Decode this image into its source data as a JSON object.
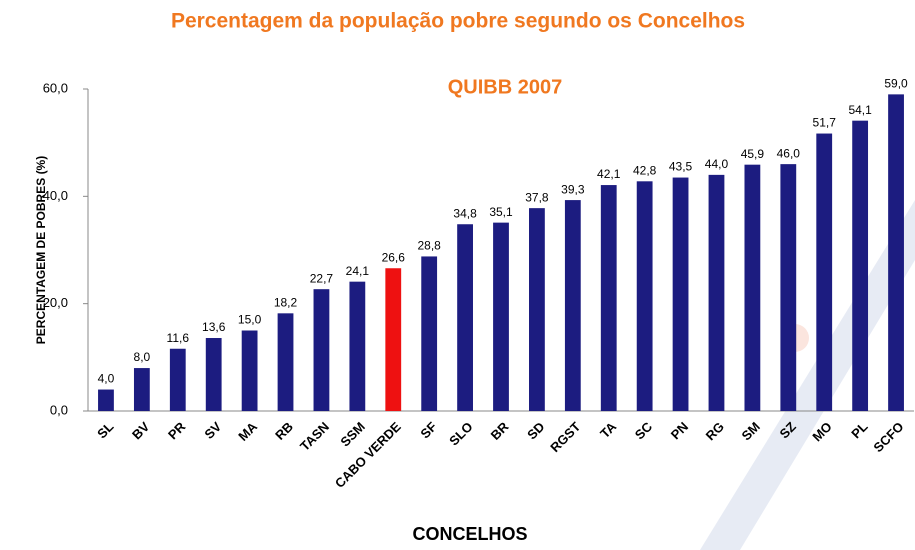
{
  "chart_data": {
    "type": "bar",
    "title": "Percentagem da população pobre segundo os Concelhos",
    "subtitle": "QUIBB 2007",
    "x_label": "CONCELHOS",
    "y_label": "PERCENTAGEM DE POBRES (%)",
    "categories": [
      "SL",
      "BV",
      "PR",
      "SV",
      "MA",
      "RB",
      "TASN",
      "SSM",
      "CABO VERDE",
      "SF",
      "SLO",
      "BR",
      "SD",
      "RGST",
      "TA",
      "SC",
      "PN",
      "RG",
      "SM",
      "SZ",
      "MO",
      "PL",
      "SCFO"
    ],
    "values": [
      4.0,
      8.0,
      11.6,
      13.6,
      15.0,
      18.2,
      22.7,
      24.1,
      26.6,
      28.8,
      34.8,
      35.1,
      37.8,
      39.3,
      42.1,
      42.8,
      43.5,
      44.0,
      45.9,
      46.0,
      51.7,
      54.1,
      59.0
    ],
    "value_labels": [
      "4,0",
      "8,0",
      "11,6",
      "13,6",
      "15,0",
      "18,2",
      "22,7",
      "24,1",
      "26,6",
      "28,8",
      "34,8",
      "35,1",
      "37,8",
      "39,3",
      "42,1",
      "42,8",
      "43,5",
      "44,0",
      "45,9",
      "46,0",
      "51,7",
      "54,1",
      "59,0"
    ],
    "colors": [
      "#1c1c80",
      "#1c1c80",
      "#1c1c80",
      "#1c1c80",
      "#1c1c80",
      "#1c1c80",
      "#1c1c80",
      "#1c1c80",
      "#ee1111",
      "#1c1c80",
      "#1c1c80",
      "#1c1c80",
      "#1c1c80",
      "#1c1c80",
      "#1c1c80",
      "#1c1c80",
      "#1c1c80",
      "#1c1c80",
      "#1c1c80",
      "#1c1c80",
      "#1c1c80",
      "#1c1c80",
      "#1c1c80"
    ],
    "ylim": [
      0,
      60
    ],
    "yticks": [
      {
        "value": 0,
        "label": "0,0"
      },
      {
        "value": 20,
        "label": "20,0"
      },
      {
        "value": 40,
        "label": "40,0"
      },
      {
        "value": 60,
        "label": "60,0"
      }
    ]
  }
}
